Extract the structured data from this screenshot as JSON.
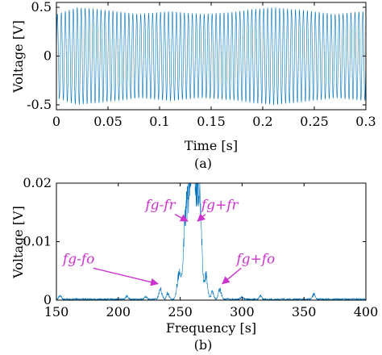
{
  "chart_data": [
    {
      "type": "line",
      "panel": "(a)",
      "xlabel": "Time [s]",
      "ylabel": "Voltage [V]",
      "xlim": [
        0,
        0.3
      ],
      "ylim": [
        -0.55,
        0.55
      ],
      "xticks": [
        "0",
        "0.05",
        "0.1",
        "0.15",
        "0.2",
        "0.25",
        "0.3"
      ],
      "yticks": [
        "-0.5",
        "0",
        "0.5"
      ],
      "series": [
        {
          "color": "#0072BD",
          "carrier_hz": 260,
          "envelope": {
            "t": [
              0,
              0.02,
              0.05,
              0.08,
              0.11,
              0.14,
              0.17,
              0.19,
              0.21,
              0.24,
              0.27,
              0.3
            ],
            "amp": [
              0.43,
              0.5,
              0.47,
              0.43,
              0.46,
              0.43,
              0.45,
              0.48,
              0.5,
              0.47,
              0.43,
              0.46
            ]
          }
        }
      ]
    },
    {
      "type": "line",
      "panel": "(b)",
      "xlabel": "Frequency [s]",
      "ylabel": "Voltage [V]",
      "xlim": [
        150,
        400
      ],
      "ylim": [
        0,
        0.02
      ],
      "xticks": [
        "150",
        "200",
        "250",
        "300",
        "350",
        "400"
      ],
      "yticks": [
        "0",
        "0.01",
        "0.02"
      ],
      "series": [
        {
          "color": "#0072BD",
          "peaks": [
            {
              "f": 258,
              "v": 0.02,
              "w": 3
            },
            {
              "f": 262,
              "v": 0.0195,
              "w": 3
            },
            {
              "f": 254,
              "v": 0.011,
              "w": 1.5
            },
            {
              "f": 266,
              "v": 0.0135,
              "w": 1.5
            },
            {
              "f": 249,
              "v": 0.0055,
              "w": 1.5
            },
            {
              "f": 271,
              "v": 0.005,
              "w": 1.2
            },
            {
              "f": 234,
              "v": 0.0022,
              "w": 1.2
            },
            {
              "f": 282,
              "v": 0.0022,
              "w": 1.2
            },
            {
              "f": 240,
              "v": 0.0014,
              "w": 1
            },
            {
              "f": 276,
              "v": 0.0016,
              "w": 1
            },
            {
              "f": 358,
              "v": 0.0012,
              "w": 1
            },
            {
              "f": 153,
              "v": 0.0008,
              "w": 1
            },
            {
              "f": 207,
              "v": 0.0007,
              "w": 1
            },
            {
              "f": 315,
              "v": 0.0007,
              "w": 1
            },
            {
              "f": 222,
              "v": 0.0006,
              "w": 1
            },
            {
              "f": 300,
              "v": 0.0005,
              "w": 1
            }
          ],
          "noise_floor": 0.0003
        }
      ],
      "annotations": [
        {
          "text": "fg-fr",
          "x": 234,
          "y": 0.0155,
          "target_x": 256,
          "target_y": 0.0135
        },
        {
          "text": "fg+fr",
          "x": 282,
          "y": 0.0155,
          "target_x": 264,
          "target_y": 0.0135
        },
        {
          "text": "fg-fo",
          "x": 168,
          "y": 0.0063,
          "target_x": 232,
          "target_y": 0.0028
        },
        {
          "text": "fg+fo",
          "x": 311,
          "y": 0.0063,
          "target_x": 284,
          "target_y": 0.0028
        }
      ]
    }
  ]
}
